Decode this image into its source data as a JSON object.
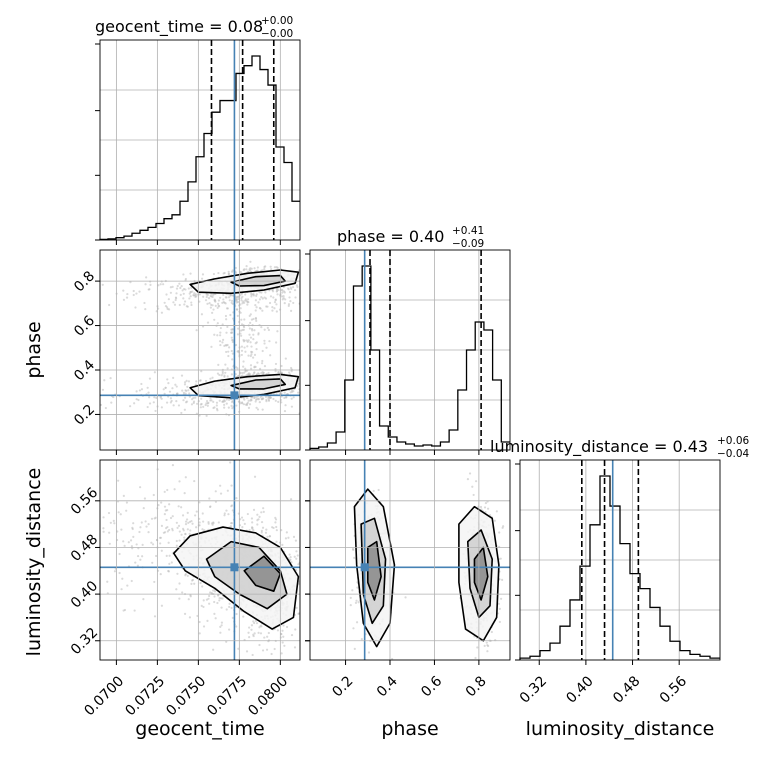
{
  "chart_data": {
    "type": "corner",
    "title_prefix": {
      "geocent_time": "geocent_time = 0.08",
      "phase": "phase = 0.40",
      "luminosity_distance": "luminosity_distance = 0.43"
    },
    "title_sup": {
      "geocent_time": "+0.00",
      "phase": "+0.41",
      "luminosity_distance": "+0.06"
    },
    "title_sub": {
      "geocent_time": "−0.00",
      "phase": "−0.09",
      "luminosity_distance": "−0.04"
    },
    "axis_labels": [
      "geocent_time",
      "phase",
      "luminosity_distance"
    ],
    "ticks": {
      "geocent_time": [
        "0.0700",
        "0.0725",
        "0.0750",
        "0.0775",
        "0.0800"
      ],
      "phase": [
        "0.2",
        "0.4",
        "0.6",
        "0.8"
      ],
      "luminosity_distance": [
        "0.32",
        "0.40",
        "0.48",
        "0.56"
      ]
    },
    "ranges": {
      "geocent_time": [
        0.069,
        0.0812
      ],
      "phase": [
        0.04,
        0.94
      ],
      "luminosity_distance": [
        0.287,
        0.63
      ]
    },
    "truths": {
      "geocent_time": 0.0772,
      "phase": 0.286,
      "luminosity_distance": 0.446
    },
    "quantiles": {
      "geocent_time": [
        0.0758,
        0.0777,
        0.0796
      ],
      "phase": [
        0.31,
        0.4,
        0.81
      ],
      "luminosity_distance": [
        0.393,
        0.432,
        0.49
      ]
    },
    "histograms": {
      "geocent_time": [
        0.003,
        0.006,
        0.012,
        0.02,
        0.035,
        0.05,
        0.065,
        0.085,
        0.11,
        0.13,
        0.2,
        0.3,
        0.43,
        0.55,
        0.66,
        0.72,
        0.72,
        0.86,
        0.9,
        0.95,
        0.88,
        0.8,
        0.48,
        0.4,
        0.2
      ],
      "phase": [
        0.008,
        0.015,
        0.035,
        0.09,
        0.35,
        0.82,
        0.92,
        0.5,
        0.12,
        0.065,
        0.04,
        0.03,
        0.02,
        0.025,
        0.02,
        0.04,
        0.1,
        0.3,
        0.5,
        0.64,
        0.6,
        0.35,
        0.04
      ],
      "luminosity_distance": [
        0.01,
        0.02,
        0.05,
        0.09,
        0.18,
        0.32,
        0.5,
        0.72,
        0.98,
        0.82,
        0.62,
        0.46,
        0.38,
        0.28,
        0.18,
        0.1,
        0.05,
        0.03,
        0.02,
        0.01
      ]
    },
    "grid": true,
    "colors": {
      "truth": "#4682b4",
      "hist": "#000000",
      "points": "#bbbbbb"
    }
  }
}
